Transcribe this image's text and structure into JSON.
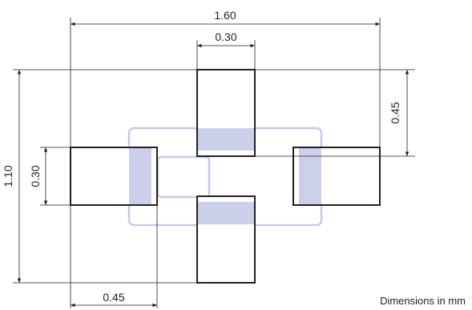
{
  "diagram": {
    "dimensions": {
      "overall_width": "1.60",
      "top_pad_width": "0.30",
      "pad_offset_right": "0.45",
      "overall_height": "1.10",
      "side_pad_height": "0.30",
      "bottom_pad_width": "0.45"
    },
    "note": "Dimensions in mm",
    "colors": {
      "line": "#231f20",
      "package_outline": "#c5cbe5",
      "overlap_fill": "#c9cde9"
    }
  }
}
